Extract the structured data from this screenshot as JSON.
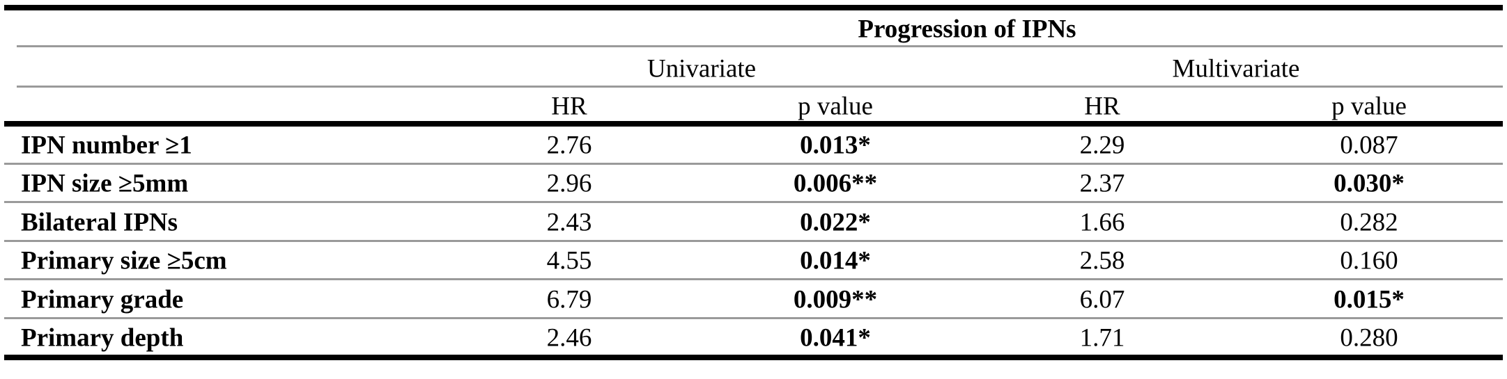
{
  "table": {
    "group_header": "Progression of IPNs",
    "subgroups": [
      "Univariate",
      "Multivariate"
    ],
    "columns": [
      "HR",
      "p value",
      "HR",
      "p value"
    ],
    "rows": [
      {
        "label": "IPN number ≥1",
        "cells": [
          "2.76",
          "0.013*",
          "2.29",
          "0.087"
        ],
        "bold": [
          false,
          true,
          false,
          false
        ]
      },
      {
        "label": "IPN size ≥5mm",
        "cells": [
          "2.96",
          "0.006**",
          "2.37",
          "0.030*"
        ],
        "bold": [
          false,
          true,
          false,
          true
        ]
      },
      {
        "label": "Bilateral IPNs",
        "cells": [
          "2.43",
          "0.022*",
          "1.66",
          "0.282"
        ],
        "bold": [
          false,
          true,
          false,
          false
        ]
      },
      {
        "label": "Primary size ≥5cm",
        "cells": [
          "4.55",
          "0.014*",
          "2.58",
          "0.160"
        ],
        "bold": [
          false,
          true,
          false,
          false
        ]
      },
      {
        "label": "Primary grade",
        "cells": [
          "6.79",
          "0.009**",
          "6.07",
          "0.015*"
        ],
        "bold": [
          false,
          true,
          false,
          true
        ]
      },
      {
        "label": "Primary depth",
        "cells": [
          "2.46",
          "0.041*",
          "1.71",
          "0.280"
        ],
        "bold": [
          false,
          true,
          false,
          false
        ]
      }
    ]
  }
}
